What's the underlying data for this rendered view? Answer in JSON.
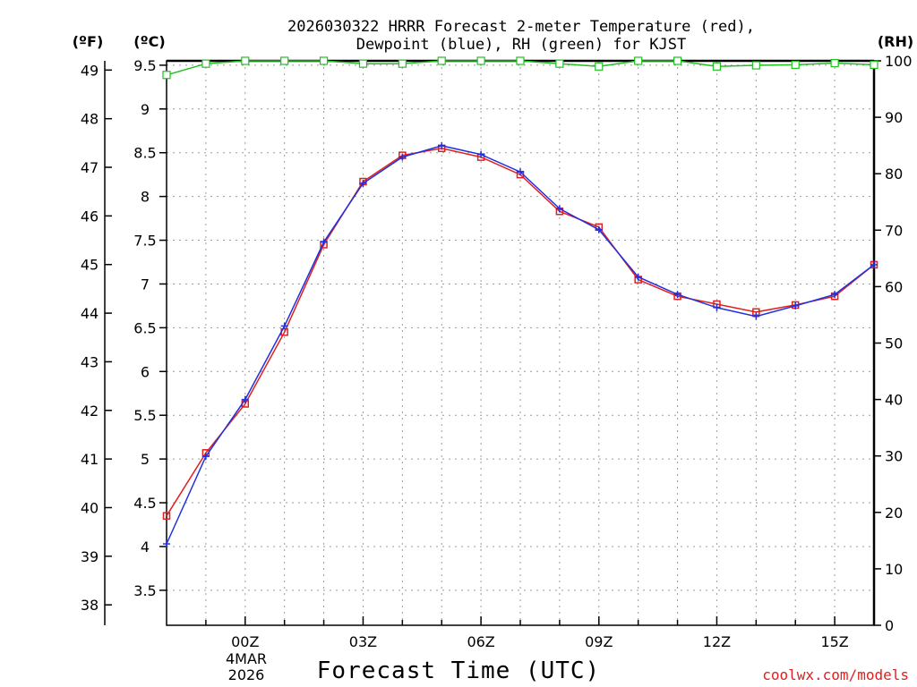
{
  "chart_data": {
    "type": "line",
    "title_lines": [
      "2026030322 HRRR Forecast 2-meter Temperature (red),",
      "Dewpoint (blue), RH (green) for KJST"
    ],
    "xlabel": "Forecast Time (UTC)",
    "unit_labels": {
      "fahrenheit": "(ºF)",
      "celsius": "(ºC)",
      "rh": "(RH)"
    },
    "x_ticks": [
      "00Z",
      "03Z",
      "06Z",
      "09Z",
      "12Z",
      "15Z"
    ],
    "x_tick_hours": [
      2,
      5,
      8,
      11,
      14,
      17
    ],
    "x_date_label": [
      "4MAR",
      "2026"
    ],
    "x_range_hours": [
      0,
      18
    ],
    "celsius_range": [
      3.1,
      9.55
    ],
    "celsius_ticks": [
      "3.5",
      "4",
      "4.5",
      "5",
      "5.5",
      "6",
      "6.5",
      "7",
      "7.5",
      "8",
      "8.5",
      "9",
      "9.5"
    ],
    "fahrenheit_ticks": [
      "38",
      "39",
      "40",
      "41",
      "42",
      "43",
      "44",
      "45",
      "46",
      "47",
      "48",
      "49"
    ],
    "rh_range": [
      0,
      100
    ],
    "rh_ticks": [
      "0",
      "10",
      "20",
      "30",
      "40",
      "50",
      "60",
      "70",
      "80",
      "90",
      "100"
    ],
    "forecast_hours": [
      0,
      1,
      2,
      3,
      4,
      5,
      6,
      7,
      8,
      9,
      10,
      11,
      12,
      13,
      14,
      15,
      16,
      17,
      18
    ],
    "series": [
      {
        "name": "Temperature",
        "unit": "C",
        "color": "#e02020",
        "marker": "square",
        "values": [
          4.35,
          5.07,
          5.63,
          6.45,
          7.45,
          8.17,
          8.47,
          8.55,
          8.45,
          8.25,
          7.83,
          7.65,
          7.05,
          6.86,
          6.77,
          6.68,
          6.76,
          6.86,
          7.22
        ]
      },
      {
        "name": "Dewpoint",
        "unit": "C",
        "color": "#2030e0",
        "marker": "plus",
        "values": [
          4.03,
          5.03,
          5.68,
          6.52,
          7.48,
          8.15,
          8.45,
          8.58,
          8.48,
          8.28,
          7.86,
          7.62,
          7.08,
          6.88,
          6.73,
          6.63,
          6.75,
          6.88,
          7.22
        ]
      },
      {
        "name": "RH",
        "unit": "%",
        "color": "#20c020",
        "marker": "square",
        "values": [
          97.5,
          99.5,
          100,
          100,
          100,
          99.5,
          99.5,
          100,
          100,
          100,
          99.5,
          99,
          100,
          100,
          99,
          99.2,
          99.3,
          99.6,
          99.3
        ]
      }
    ]
  },
  "credit": "coolwx.com/models"
}
